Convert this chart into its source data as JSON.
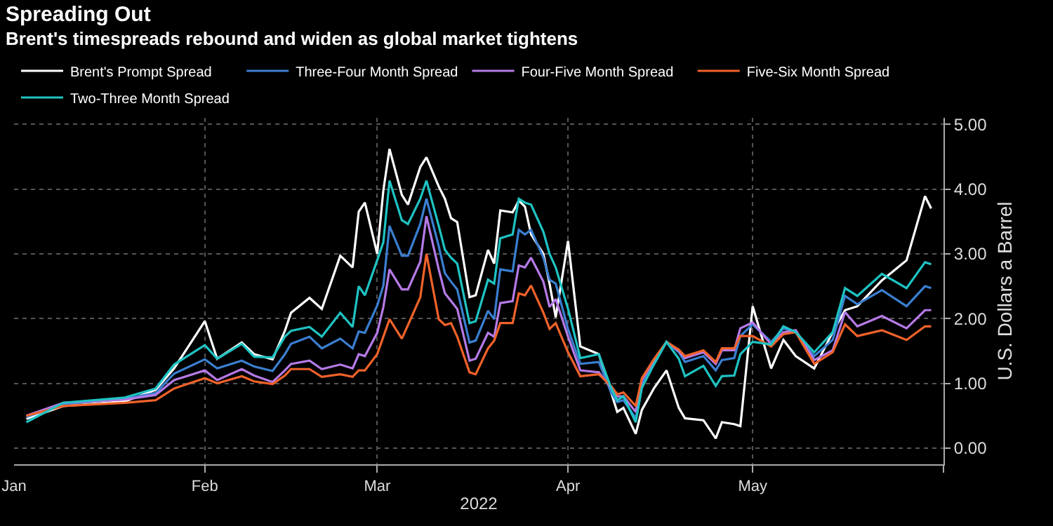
{
  "chart_data": {
    "type": "line",
    "title": "Spreading Out",
    "subtitle": "Brent's timespreads rebound and widen as global market tightens",
    "xlabel": "2022",
    "ylabel": "U.S. Dollars a Barrel",
    "legend": "top left",
    "grid": true,
    "x": [
      "2022-01-03",
      "2022-01-09",
      "2022-01-19",
      "2022-01-24",
      "2022-01-27",
      "2022-02-01",
      "2022-02-03",
      "2022-02-07",
      "2022-02-09",
      "2022-02-12",
      "2022-02-14",
      "2022-02-15",
      "2022-02-18",
      "2022-02-20",
      "2022-02-23",
      "2022-02-25",
      "2022-02-26",
      "2022-02-27",
      "2022-03-01",
      "2022-03-02",
      "2022-03-03",
      "2022-03-05",
      "2022-03-06",
      "2022-03-08",
      "2022-03-09",
      "2022-03-11",
      "2022-03-12",
      "2022-03-13",
      "2022-03-14",
      "2022-03-16",
      "2022-03-17",
      "2022-03-19",
      "2022-03-20",
      "2022-03-21",
      "2022-03-23",
      "2022-03-24",
      "2022-03-25",
      "2022-03-26",
      "2022-03-28",
      "2022-03-29",
      "2022-03-30",
      "2022-04-01",
      "2022-04-03",
      "2022-04-06",
      "2022-04-08",
      "2022-04-09",
      "2022-04-10",
      "2022-04-12",
      "2022-04-13",
      "2022-04-15",
      "2022-04-17",
      "2022-04-19",
      "2022-04-20",
      "2022-04-23",
      "2022-04-25",
      "2022-04-26",
      "2022-04-28",
      "2022-04-29",
      "2022-05-01",
      "2022-05-04",
      "2022-05-06",
      "2022-05-08",
      "2022-05-11",
      "2022-05-14",
      "2022-05-16",
      "2022-05-18",
      "2022-05-22",
      "2022-05-26",
      "2022-05-29",
      "2022-05-30"
    ],
    "xlim": [
      "2022-01-01",
      "2022-06-01"
    ],
    "xticks": [
      {
        "value": "2022-01-01",
        "label": "Jan"
      },
      {
        "value": "2022-02-01",
        "label": "Feb"
      },
      {
        "value": "2022-03-01",
        "label": "Mar"
      },
      {
        "value": "2022-04-01",
        "label": "Apr"
      },
      {
        "value": "2022-05-01",
        "label": "May"
      },
      {
        "value": "2022-06-01",
        "label": null
      }
    ],
    "ylim": [
      -0.25,
      5.1
    ],
    "yticks": [
      {
        "value": 0,
        "label": "0.00"
      },
      {
        "value": 1,
        "label": "1.00"
      },
      {
        "value": 2,
        "label": "2.00"
      },
      {
        "value": 3,
        "label": "3.00"
      },
      {
        "value": 4,
        "label": "4.00"
      },
      {
        "value": 5,
        "label": "5.00"
      }
    ],
    "series": [
      {
        "name": "Brent's Prompt Spread",
        "color": "#ffffff",
        "values": [
          0.45,
          0.65,
          0.72,
          0.9,
          1.23,
          1.96,
          1.38,
          1.63,
          1.45,
          1.37,
          1.81,
          2.09,
          2.32,
          2.15,
          2.97,
          2.79,
          3.65,
          3.79,
          3.0,
          3.98,
          4.62,
          3.91,
          3.76,
          4.34,
          4.49,
          4.04,
          3.85,
          3.55,
          3.49,
          2.33,
          2.36,
          3.06,
          2.85,
          3.67,
          3.64,
          3.82,
          3.73,
          3.3,
          3.0,
          2.54,
          2.02,
          3.2,
          1.57,
          1.45,
          0.86,
          0.56,
          0.62,
          0.22,
          0.59,
          0.93,
          1.2,
          0.62,
          0.46,
          0.43,
          0.15,
          0.4,
          0.37,
          0.34,
          2.19,
          1.23,
          1.67,
          1.42,
          1.23,
          1.79,
          2.13,
          2.19,
          2.59,
          2.9,
          3.89,
          3.7
        ]
      },
      {
        "name": "Three-Four Month Spread",
        "color": "#3a7fd0",
        "values": [
          0.48,
          0.68,
          0.76,
          0.85,
          1.15,
          1.37,
          1.23,
          1.35,
          1.26,
          1.19,
          1.45,
          1.61,
          1.72,
          1.54,
          1.69,
          1.54,
          1.8,
          1.78,
          2.2,
          2.51,
          3.43,
          2.97,
          2.97,
          3.46,
          3.85,
          3.12,
          2.7,
          2.57,
          2.45,
          1.63,
          1.66,
          2.12,
          1.99,
          2.76,
          2.73,
          3.37,
          3.3,
          3.37,
          2.94,
          2.6,
          2.54,
          1.84,
          1.3,
          1.33,
          0.86,
          0.71,
          0.74,
          0.46,
          0.99,
          1.3,
          1.64,
          1.48,
          1.33,
          1.42,
          1.2,
          1.36,
          1.39,
          1.73,
          1.91,
          1.64,
          1.85,
          1.79,
          1.42,
          1.67,
          2.35,
          2.22,
          2.44,
          2.19,
          2.5,
          2.47
        ]
      },
      {
        "name": "Four-Five Month Spread",
        "color": "#b57ae6",
        "values": [
          0.5,
          0.7,
          0.75,
          0.82,
          1.05,
          1.2,
          1.05,
          1.22,
          1.12,
          1.02,
          1.2,
          1.3,
          1.35,
          1.22,
          1.29,
          1.23,
          1.45,
          1.42,
          1.78,
          2.18,
          2.76,
          2.45,
          2.45,
          2.88,
          3.58,
          2.76,
          2.39,
          2.27,
          2.15,
          1.35,
          1.38,
          1.78,
          1.72,
          2.24,
          2.27,
          2.82,
          2.79,
          2.94,
          2.57,
          2.18,
          2.3,
          1.72,
          1.2,
          1.17,
          0.93,
          0.8,
          0.8,
          0.56,
          1.05,
          1.35,
          1.64,
          1.5,
          1.39,
          1.48,
          1.3,
          1.51,
          1.51,
          1.85,
          1.94,
          1.6,
          1.79,
          1.82,
          1.36,
          1.51,
          2.1,
          1.88,
          2.04,
          1.85,
          2.13,
          2.13
        ]
      },
      {
        "name": "Five-Six Month Spread",
        "color": "#f0622a",
        "values": [
          0.5,
          0.65,
          0.7,
          0.74,
          0.92,
          1.08,
          1.0,
          1.11,
          1.03,
          0.99,
          1.12,
          1.22,
          1.22,
          1.1,
          1.14,
          1.1,
          1.2,
          1.2,
          1.45,
          1.72,
          1.99,
          1.69,
          1.9,
          2.33,
          3.0,
          1.99,
          1.9,
          1.93,
          1.72,
          1.17,
          1.14,
          1.54,
          1.66,
          1.93,
          1.93,
          2.39,
          2.36,
          2.51,
          2.09,
          1.84,
          1.93,
          1.48,
          1.11,
          1.14,
          0.96,
          0.83,
          0.86,
          0.65,
          1.08,
          1.38,
          1.64,
          1.52,
          1.42,
          1.51,
          1.33,
          1.54,
          1.54,
          1.73,
          1.73,
          1.57,
          1.76,
          1.79,
          1.3,
          1.48,
          1.91,
          1.73,
          1.82,
          1.67,
          1.88,
          1.88
        ]
      },
      {
        "name": "Two-Three Month Spread",
        "color": "#1fc3c3",
        "values": [
          0.4,
          0.7,
          0.78,
          0.92,
          1.29,
          1.59,
          1.38,
          1.61,
          1.41,
          1.4,
          1.72,
          1.81,
          1.87,
          1.72,
          2.09,
          1.87,
          2.5,
          2.36,
          2.9,
          3.18,
          4.13,
          3.52,
          3.46,
          3.85,
          4.13,
          3.43,
          3.06,
          2.94,
          2.85,
          1.93,
          1.96,
          2.6,
          2.54,
          3.24,
          3.3,
          3.85,
          3.79,
          3.76,
          3.34,
          3.0,
          2.79,
          2.15,
          1.39,
          1.45,
          0.93,
          0.74,
          0.8,
          0.4,
          0.93,
          1.3,
          1.64,
          1.38,
          1.11,
          1.27,
          0.96,
          1.11,
          1.12,
          1.45,
          1.64,
          1.6,
          1.88,
          1.79,
          1.48,
          1.79,
          2.47,
          2.35,
          2.69,
          2.47,
          2.87,
          2.84
        ]
      }
    ]
  }
}
